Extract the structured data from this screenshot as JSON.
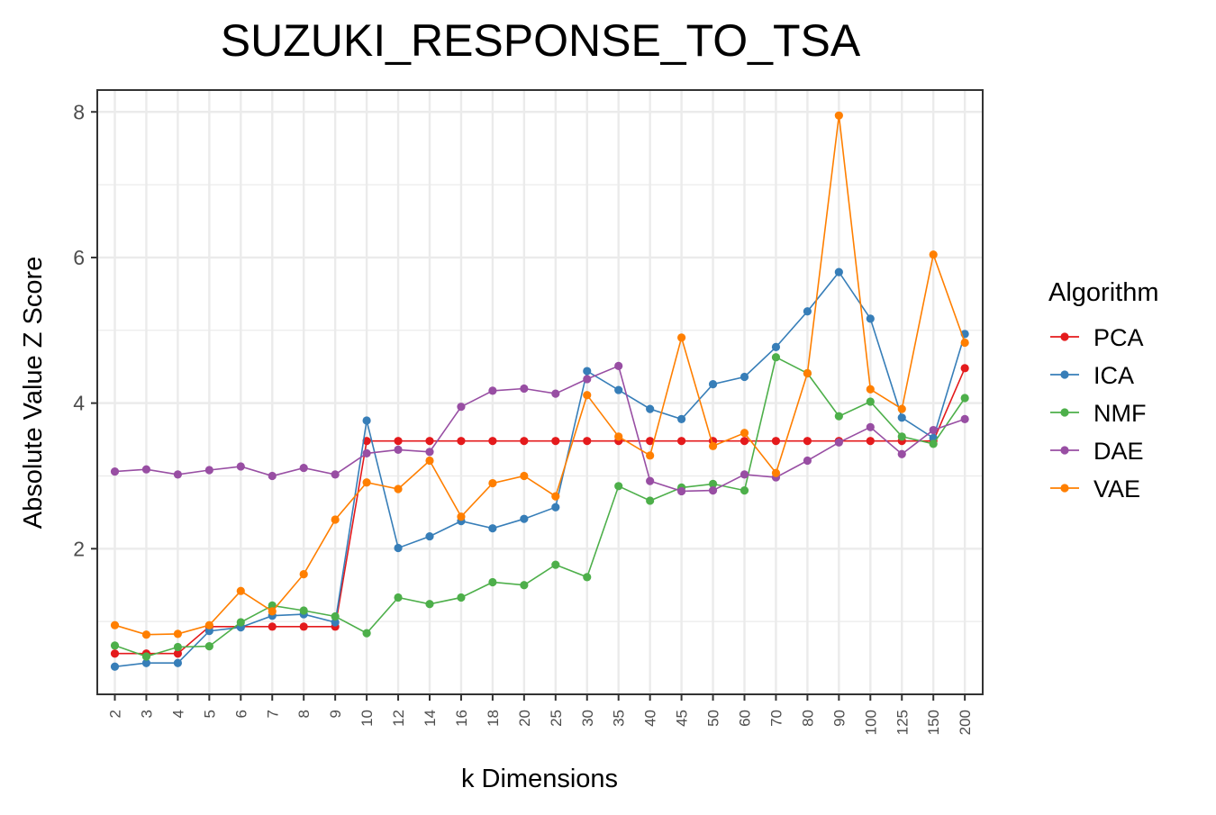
{
  "chart_data": {
    "type": "line",
    "title": "SUZUKI_RESPONSE_TO_TSA",
    "xlabel": "k Dimensions",
    "ylabel": "Absolute Value Z Score",
    "ylim": [
      0,
      8.3
    ],
    "yticks": [
      2,
      4,
      6,
      8
    ],
    "grid": true,
    "legend": {
      "title": "Algorithm",
      "position": "right"
    },
    "categories": [
      "2",
      "3",
      "4",
      "5",
      "6",
      "7",
      "8",
      "9",
      "10",
      "12",
      "14",
      "16",
      "18",
      "20",
      "25",
      "30",
      "35",
      "40",
      "45",
      "50",
      "60",
      "70",
      "80",
      "90",
      "100",
      "125",
      "150",
      "200"
    ],
    "series": [
      {
        "name": "PCA",
        "color": "#e41a1c",
        "values": [
          0.56,
          0.56,
          0.56,
          0.93,
          0.93,
          0.93,
          0.93,
          0.93,
          3.48,
          3.48,
          3.48,
          3.48,
          3.48,
          3.48,
          3.48,
          3.48,
          3.48,
          3.48,
          3.48,
          3.48,
          3.48,
          3.48,
          3.48,
          3.48,
          3.48,
          3.48,
          3.48,
          4.48
        ]
      },
      {
        "name": "ICA",
        "color": "#377eb8",
        "values": [
          0.38,
          0.43,
          0.43,
          0.87,
          0.92,
          1.08,
          1.1,
          0.99,
          3.76,
          2.01,
          2.17,
          2.38,
          2.28,
          2.41,
          2.57,
          4.44,
          4.18,
          3.92,
          3.78,
          4.26,
          4.36,
          4.77,
          5.26,
          5.8,
          5.16,
          3.8,
          3.52,
          4.95
        ]
      },
      {
        "name": "NMF",
        "color": "#4daf4a",
        "values": [
          0.67,
          0.52,
          0.65,
          0.66,
          0.99,
          1.22,
          1.15,
          1.07,
          0.84,
          1.33,
          1.24,
          1.33,
          1.54,
          1.5,
          1.78,
          1.61,
          2.86,
          2.66,
          2.84,
          2.89,
          2.8,
          4.63,
          4.41,
          3.82,
          4.02,
          3.54,
          3.44,
          4.07
        ]
      },
      {
        "name": "DAE",
        "color": "#984ea3",
        "values": [
          3.06,
          3.09,
          3.02,
          3.08,
          3.13,
          3.0,
          3.11,
          3.02,
          3.31,
          3.36,
          3.33,
          3.95,
          4.17,
          4.2,
          4.13,
          4.33,
          4.51,
          2.93,
          2.79,
          2.8,
          3.02,
          2.98,
          3.21,
          3.46,
          3.67,
          3.3,
          3.63,
          3.78
        ]
      },
      {
        "name": "VAE",
        "color": "#ff7f00",
        "values": [
          0.95,
          0.82,
          0.83,
          0.95,
          1.42,
          1.14,
          1.65,
          2.4,
          2.91,
          2.82,
          3.21,
          2.44,
          2.9,
          3.0,
          2.72,
          4.11,
          3.54,
          3.28,
          4.9,
          3.41,
          3.59,
          3.04,
          4.41,
          7.95,
          4.19,
          3.92,
          6.04,
          4.83
        ]
      }
    ]
  }
}
